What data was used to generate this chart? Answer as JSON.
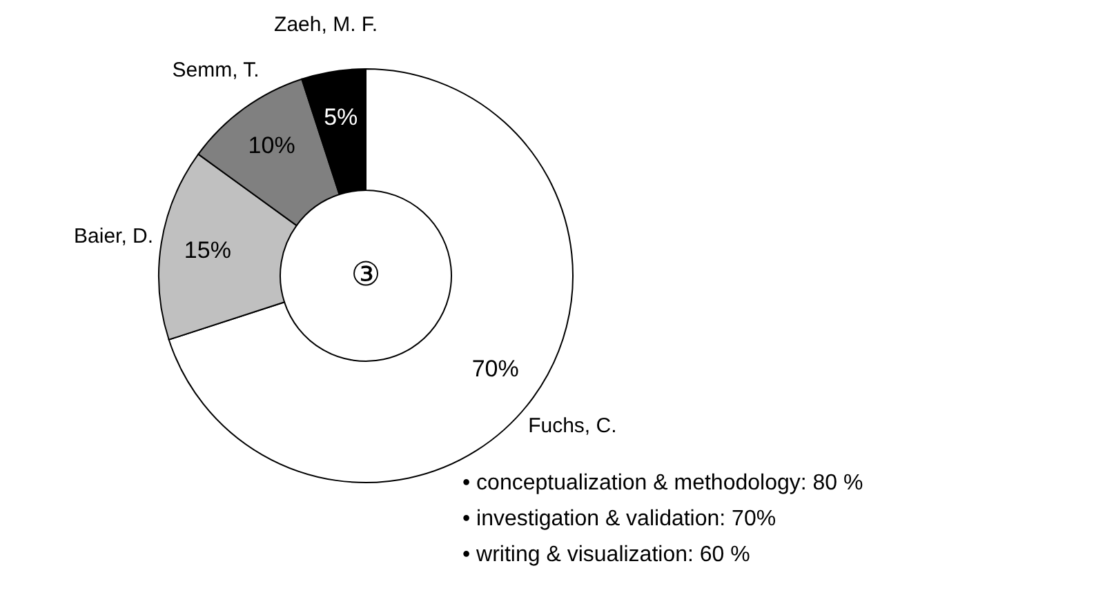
{
  "chart_data": {
    "type": "donut",
    "categories": [
      "Fuchs, C.",
      "Baier, D.",
      "Semm, T.",
      "Zaeh, M. F."
    ],
    "values": [
      70,
      15,
      10,
      5
    ],
    "value_labels": [
      "70%",
      "15%",
      "10%",
      "5%"
    ],
    "colors": [
      "#ffffff",
      "#c0c0c0",
      "#808080",
      "#000000"
    ],
    "annotations": [
      "③",
      "• conceptualization & methodology: 80 %",
      "• investigation & validation: 70%",
      "• writing & visualization: 60 %"
    ]
  }
}
